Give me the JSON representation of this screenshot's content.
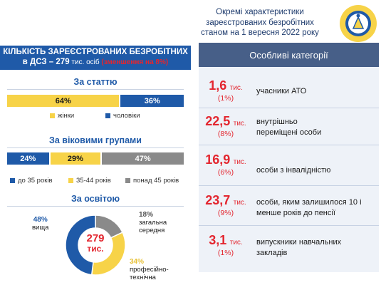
{
  "header": {
    "title_lines": [
      "Окремі характеристики",
      "зареєстрованих безробітних",
      "станом на 1 вересня 2022 року"
    ],
    "logo_text": "ДЕРЖАВНА СЛУЖБА ЗАЙНЯТОСТІ"
  },
  "banner": {
    "line1": "КІЛЬКІСТЬ ЗАРЕЄСТРОВАНИХ БЕЗРОБІТНИХ",
    "line2_main": "в ДСЗ – 279",
    "line2_sub": " тис. осіб ",
    "line2_note": "(зменшення на 8%)"
  },
  "colors": {
    "yellow": "#f7d348",
    "blue": "#1f5aa8",
    "gray": "#8a8a8a",
    "red": "#e3262f",
    "panel_head": "#475f88"
  },
  "chart_data": [
    {
      "type": "bar",
      "title": "За статтю",
      "stacked": true,
      "series": [
        {
          "name": "жінки",
          "value": 64,
          "label": "64%",
          "color": "#f7d348"
        },
        {
          "name": "чоловіки",
          "value": 36,
          "label": "36%",
          "color": "#1f5aa8"
        }
      ]
    },
    {
      "type": "bar",
      "title": "За віковими групами",
      "stacked": true,
      "series": [
        {
          "name": "до 35 років",
          "value": 24,
          "label": "24%",
          "color": "#1f5aa8"
        },
        {
          "name": "35-44 років",
          "value": 29,
          "label": "29%",
          "color": "#f7d348"
        },
        {
          "name": "понад 45 років",
          "value": 47,
          "label": "47%",
          "color": "#8a8a8a"
        }
      ]
    },
    {
      "type": "pie",
      "title": "За освітою",
      "center_value": "279",
      "center_unit": "тис.",
      "slices": [
        {
          "name": "загальна середня",
          "name_lines": [
            "загальна",
            "середня"
          ],
          "value": 18,
          "label": "18%",
          "color": "#8a8a8a"
        },
        {
          "name": "професійно-технічна",
          "name_lines": [
            "професійно-",
            "технічна"
          ],
          "value": 34,
          "label": "34%",
          "color": "#f7d348"
        },
        {
          "name": "вища",
          "name_lines": [
            "вища"
          ],
          "value": 48,
          "label": "48%",
          "color": "#1f5aa8"
        }
      ]
    }
  ],
  "categories_panel": {
    "title": "Особливі категорії",
    "rows": [
      {
        "value": "1,6",
        "unit": "тис.",
        "percent": "(1%)",
        "text": "учасники АТО"
      },
      {
        "value": "22,5",
        "unit": "тис.",
        "percent": "(8%)",
        "text": "внутрішньо переміщені особи"
      },
      {
        "value": "16,9",
        "unit": "тис.",
        "percent": "(6%)",
        "text": "особи з інвалідністю"
      },
      {
        "value": "23,7",
        "unit": "тис.",
        "percent": "(9%)",
        "text": "особи, яким залишилося 10 і менше років до пенсії"
      },
      {
        "value": "3,1",
        "unit": "тис.",
        "percent": "(1%)",
        "text": "випускники навчальних закладів"
      }
    ]
  }
}
